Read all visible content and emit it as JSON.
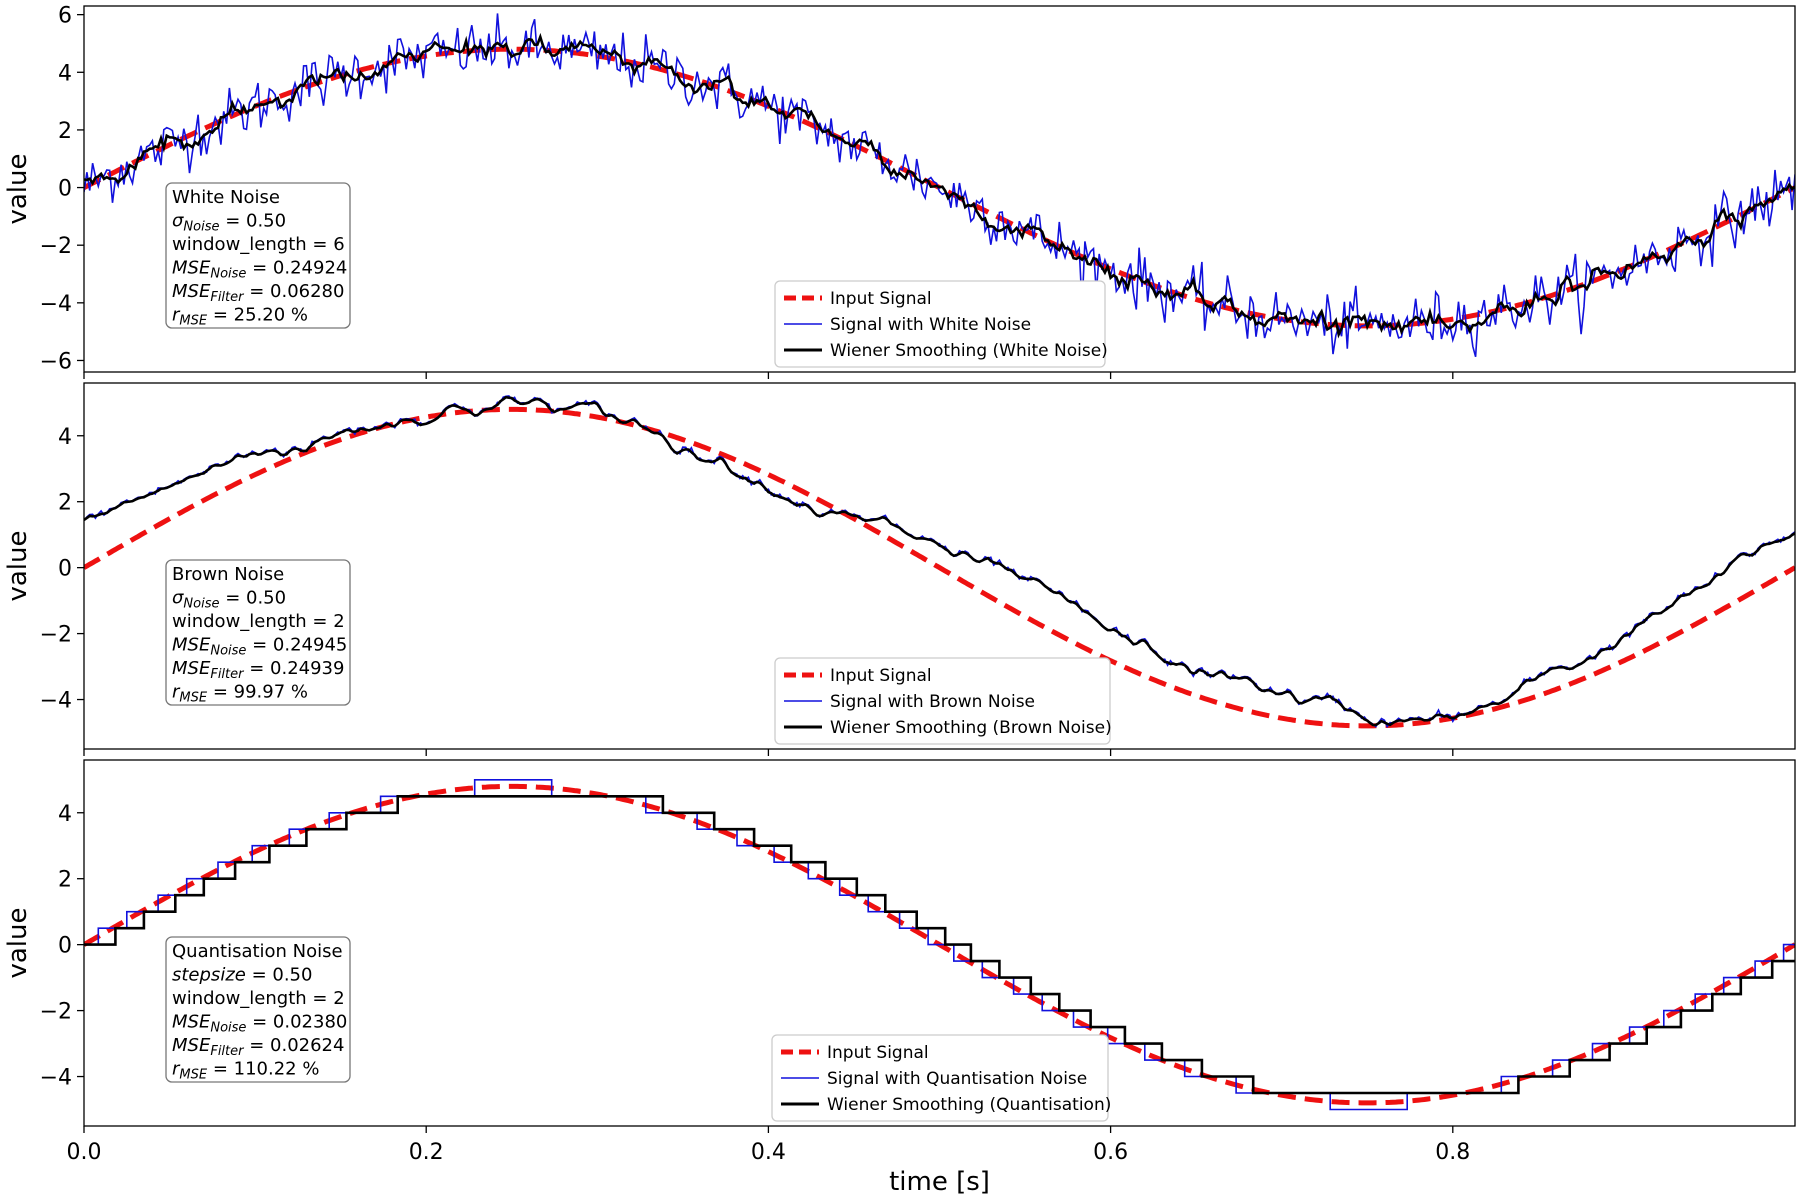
{
  "chart_data": {
    "type": "line",
    "xlabel": "time [s]",
    "ylabel": "value",
    "xlim": [
      0.0,
      1.0
    ],
    "x_ticks": [
      0.0,
      0.2,
      0.4,
      0.6,
      0.8
    ],
    "x_tick_labels": [
      "0.0",
      "0.2",
      "0.4",
      "0.6",
      "0.8"
    ],
    "input_signal": {
      "function": "5*sin(2*pi*t)",
      "amplitude_shown": 4.8
    },
    "colors": {
      "input": "#ee1111",
      "noisy": "#1111dd",
      "smoothed": "#000000"
    },
    "panels": [
      {
        "ylim": [
          -6.4,
          6.3
        ],
        "y_ticks": [
          6,
          4,
          2,
          0,
          -2,
          -4,
          -6
        ],
        "y_tick_labels": [
          "6",
          "4",
          "2",
          "0",
          "−2",
          "−4",
          "−6"
        ],
        "legend": [
          "Input Signal",
          "Signal with White Noise",
          "Wiener Smoothing (White Noise)"
        ],
        "legend_position": "lower-center",
        "info": [
          {
            "text": "White Noise"
          },
          {
            "sym": "σ",
            "sub": "Noise",
            "italic": true,
            "value": "= 0.50"
          },
          {
            "text": "window_length = 6"
          },
          {
            "sym": "MSE",
            "sub": "Noise",
            "italic": true,
            "value": "= 0.24924"
          },
          {
            "sym": "MSE",
            "sub": "Filter",
            "italic": true,
            "value": "= 0.06280"
          },
          {
            "sym": "r",
            "sub": "MSE",
            "italic": true,
            "value": "= 25.20 %"
          }
        ],
        "noise": "white",
        "series": [
          {
            "name": "Input Signal",
            "role": "input"
          },
          {
            "name": "Signal with White Noise",
            "role": "noisy",
            "noise_sigma": 0.5
          },
          {
            "name": "Wiener Smoothing (White Noise)",
            "role": "smoothed",
            "mse": 0.0628
          }
        ]
      },
      {
        "ylim": [
          -5.5,
          5.6
        ],
        "y_ticks": [
          4,
          2,
          0,
          -2,
          -4
        ],
        "y_tick_labels": [
          "4",
          "2",
          "0",
          "−2",
          "−4"
        ],
        "legend": [
          "Input Signal",
          "Signal with Brown Noise",
          "Wiener Smoothing (Brown Noise)"
        ],
        "legend_position": "lower-center",
        "info": [
          {
            "text": "Brown Noise"
          },
          {
            "sym": "σ",
            "sub": "Noise",
            "italic": true,
            "value": "= 0.50"
          },
          {
            "text": "window_length = 2"
          },
          {
            "sym": "MSE",
            "sub": "Noise",
            "italic": true,
            "value": "= 0.24945"
          },
          {
            "sym": "MSE",
            "sub": "Filter",
            "italic": true,
            "value": "= 0.24939"
          },
          {
            "sym": "r",
            "sub": "MSE",
            "italic": true,
            "value": "= 99.97 %"
          }
        ],
        "noise": "brown",
        "offset_x": [
          0.0,
          0.1,
          0.15,
          0.2,
          0.25,
          0.3,
          0.35,
          0.4,
          0.45,
          0.5,
          0.55,
          0.6,
          0.65,
          0.7,
          0.75,
          0.8,
          0.85,
          0.9,
          0.95,
          1.0
        ],
        "offset_y": [
          1.3,
          0.6,
          0.2,
          0.3,
          0.25,
          0.0,
          0.0,
          0.0,
          -0.05,
          0.6,
          0.8,
          0.65,
          0.7,
          0.8,
          0.3,
          -0.1,
          0.3,
          0.8,
          0.9,
          1.1
        ],
        "series": [
          {
            "name": "Input Signal",
            "role": "input"
          },
          {
            "name": "Signal with Brown Noise",
            "role": "noisy"
          },
          {
            "name": "Wiener Smoothing (Brown Noise)",
            "role": "smoothed",
            "mse": 0.24939
          }
        ]
      },
      {
        "ylim": [
          -5.5,
          5.6
        ],
        "y_ticks": [
          4,
          2,
          0,
          -2,
          -4
        ],
        "y_tick_labels": [
          "4",
          "2",
          "0",
          "−2",
          "−4"
        ],
        "legend": [
          "Input Signal",
          "Signal with Quantisation Noise",
          "Wiener Smoothing (Quantisation)"
        ],
        "legend_position": "lower-center",
        "info": [
          {
            "text": "Quantisation Noise"
          },
          {
            "sym": "stepsize",
            "italic": true,
            "value": "= 0.50"
          },
          {
            "text": "window_length = 2"
          },
          {
            "sym": "MSE",
            "sub": "Noise",
            "italic": true,
            "value": "= 0.02380"
          },
          {
            "sym": "MSE",
            "sub": "Filter",
            "italic": true,
            "value": "= 0.02624"
          },
          {
            "sym": "r",
            "sub": "MSE",
            "italic": true,
            "value": "= 110.22 %"
          }
        ],
        "noise": "quantisation",
        "quant_step": 0.5,
        "series": [
          {
            "name": "Input Signal",
            "role": "input"
          },
          {
            "name": "Signal with Quantisation Noise",
            "role": "noisy"
          },
          {
            "name": "Wiener Smoothing (Quantisation)",
            "role": "smoothed",
            "mse": 0.02624
          }
        ]
      }
    ]
  }
}
